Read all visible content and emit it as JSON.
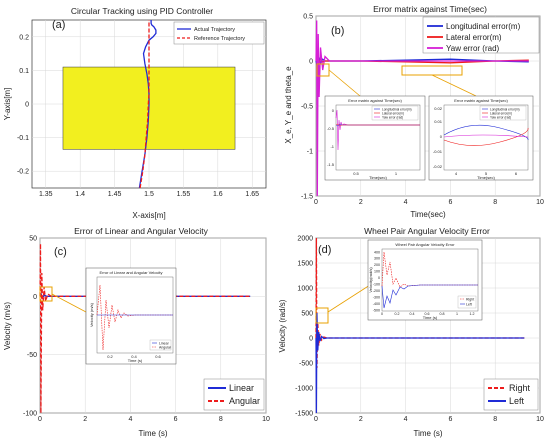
{
  "figure_panels": [
    "(a)",
    "(b)",
    "(c)",
    "(d)"
  ],
  "colors": {
    "blue": "#1f2bd6",
    "red": "#ee1c1c",
    "magenta": "#d61fd6",
    "yellow_rect": "#f2ef1f",
    "callout": "#e8a000"
  },
  "chart_data": [
    {
      "id": "a",
      "type": "line",
      "panel_label": "(a)",
      "title": "Circular Tracking using PID Controller",
      "xlabel": "X-axis[m]",
      "ylabel": "Y-axis[m]",
      "xlim": [
        1.33,
        1.67
      ],
      "ylim": [
        -0.25,
        0.25
      ],
      "xticks": [
        "1.35",
        "1.4",
        "1.45",
        "1.5",
        "1.55",
        "1.6",
        "1.65"
      ],
      "yticks": [
        "-0.2",
        "-0.1",
        "0",
        "0.1",
        "0.2"
      ],
      "grid": true,
      "legend_position": "top-right",
      "series": [
        {
          "name": "Actual Trajectory",
          "color": "#1f2bd6",
          "style": "solid",
          "x": [
            1.486,
            1.49,
            1.494,
            1.497,
            1.499,
            1.5,
            1.5,
            1.499,
            1.497,
            1.494,
            1.492,
            1.495,
            1.5,
            1.506,
            1.51,
            1.51,
            1.507,
            1.504,
            1.503,
            1.503
          ],
          "y": [
            -0.25,
            -0.2,
            -0.15,
            -0.1,
            -0.05,
            0.0,
            0.03,
            0.06,
            0.09,
            0.12,
            0.15,
            0.17,
            0.19,
            0.2,
            0.21,
            0.22,
            0.23,
            0.235,
            0.24,
            0.25
          ]
        },
        {
          "name": "Reference Trajectory",
          "color": "#ee1c1c",
          "style": "dashed",
          "x": [
            1.487,
            1.491,
            1.494,
            1.496,
            1.498,
            1.499,
            1.5,
            1.5,
            1.5,
            1.5,
            1.5,
            1.5,
            1.5,
            1.5,
            1.5,
            1.5,
            1.5,
            1.5,
            1.5,
            1.5
          ],
          "y": [
            -0.25,
            -0.2,
            -0.15,
            -0.1,
            -0.05,
            0.0,
            0.03,
            0.06,
            0.09,
            0.12,
            0.15,
            0.17,
            0.19,
            0.2,
            0.21,
            0.22,
            0.23,
            0.235,
            0.24,
            0.25
          ]
        }
      ],
      "highlight_region": {
        "x": [
          1.375,
          1.625
        ],
        "y": [
          -0.135,
          0.11
        ],
        "color": "#f2ef1f"
      }
    },
    {
      "id": "b",
      "type": "line",
      "panel_label": "(b)",
      "title": "Error matrix against Time(sec)",
      "xlabel": "Time(sec)",
      "ylabel": "X_e, Y_e and theta_e",
      "xlim": [
        0,
        10
      ],
      "ylim": [
        -1.5,
        0.5
      ],
      "xticks": [
        "0",
        "2",
        "4",
        "6",
        "8",
        "10"
      ],
      "yticks": [
        "-1.5",
        "-1",
        "-0.5",
        "0",
        "0.5"
      ],
      "grid": true,
      "legend_position": "top-right",
      "series": [
        {
          "name": "Longitudinal error(m)",
          "color": "#1f2bd6",
          "x": [
            0,
            0.05,
            0.1,
            0.2,
            0.3,
            0.4,
            0.6,
            1,
            2,
            4,
            6,
            8,
            9.5
          ],
          "y": [
            0,
            -0.05,
            0.05,
            -0.02,
            0.02,
            0.0,
            0.0,
            0.0,
            0.0,
            0.01,
            0.02,
            0.0,
            -0.01
          ]
        },
        {
          "name": "Lateral error(m)",
          "color": "#ee1c1c",
          "x": [
            0,
            0.05,
            0.1,
            0.2,
            0.3,
            0.4,
            0.6,
            1,
            2,
            4,
            6,
            8,
            9.5
          ],
          "y": [
            0,
            0.03,
            -0.03,
            0.02,
            -0.01,
            0.0,
            0.0,
            0.0,
            0.0,
            -0.01,
            -0.02,
            0.0,
            0.01
          ]
        },
        {
          "name": "Yaw error (rad)",
          "color": "#d61fd6",
          "x": [
            0,
            0.03,
            0.06,
            0.1,
            0.14,
            0.2,
            0.3,
            0.4,
            0.6,
            1,
            2,
            4,
            6,
            8,
            9.5
          ],
          "y": [
            0.0,
            0.45,
            -1.5,
            0.3,
            -0.4,
            0.15,
            -0.1,
            0.05,
            0.0,
            0.0,
            0.0,
            0.0,
            0.0,
            0.0,
            0.0
          ]
        }
      ],
      "insets": [
        {
          "title": "Error matrix against Time(sec)",
          "xlabel": "Time(sec)",
          "legend": [
            "Longitudinal error(m)",
            "Lateral error(m)",
            "Yaw error (rad)"
          ],
          "yticks": [
            "0",
            "-0.5",
            "-1",
            "-1.5"
          ],
          "xticks": [
            "0.5",
            "1"
          ]
        },
        {
          "title": "Error matrix against Time(sec)",
          "xlabel": "Time(sec)",
          "legend": [
            "Longitudinal error(m)",
            "Lateral error(m)",
            "Yaw error (rad)"
          ],
          "yticks": [
            "0.02",
            "0.01",
            "0",
            "-0.01",
            "-0.02"
          ],
          "xticks": [
            "4",
            "5",
            "6"
          ]
        }
      ]
    },
    {
      "id": "c",
      "type": "line",
      "panel_label": "(c)",
      "title": "Error of Linear and Angular Velocity",
      "xlabel": "Time (s)",
      "ylabel": "Velocity (m/s)",
      "xlim": [
        0,
        10
      ],
      "ylim": [
        -100,
        50
      ],
      "xticks": [
        "0",
        "2",
        "4",
        "6",
        "8",
        "10"
      ],
      "yticks": [
        "-100",
        "-50",
        "0",
        "50"
      ],
      "grid": true,
      "legend_position": "bottom-right",
      "series": [
        {
          "name": "Linear",
          "color": "#1f2bd6",
          "style": "solid",
          "x": [
            0,
            0.05,
            0.1,
            0.2,
            0.3,
            0.5,
            1,
            2,
            4,
            6,
            8,
            9.3
          ],
          "y": [
            0,
            2,
            -1,
            1,
            0,
            0,
            0,
            0,
            0,
            0,
            0,
            0
          ]
        },
        {
          "name": "Angular",
          "color": "#ee1c1c",
          "style": "dashed",
          "x": [
            0,
            0.02,
            0.04,
            0.08,
            0.12,
            0.18,
            0.25,
            0.35,
            0.5,
            1,
            2,
            4,
            6,
            8,
            9.3
          ],
          "y": [
            0,
            45,
            -100,
            20,
            -12,
            8,
            -4,
            2,
            0,
            0,
            0,
            0,
            0,
            0,
            0
          ]
        }
      ],
      "inset": {
        "title": "Error of Linear and Angular Velocity",
        "xlabel": "Time (s)",
        "ylabel": "Velocity (m/s)",
        "legend": [
          "Linear",
          "Angular"
        ],
        "xticks": [
          "0.2",
          "0.4",
          "0.6"
        ]
      }
    },
    {
      "id": "d",
      "type": "line",
      "panel_label": "(d)",
      "title": "Wheel Pair Angular Velocity Error",
      "xlabel": "Time (s)",
      "ylabel": "Velocity (rad/s)",
      "xlim": [
        0,
        10
      ],
      "ylim": [
        -1500,
        2000
      ],
      "xticks": [
        "0",
        "2",
        "4",
        "6",
        "8",
        "10"
      ],
      "yticks": [
        "-1500",
        "-1000",
        "-500",
        "0",
        "500",
        "1000",
        "1500",
        "2000"
      ],
      "grid": true,
      "legend_position": "bottom-right",
      "series": [
        {
          "name": "Right",
          "color": "#ee1c1c",
          "style": "dashed",
          "x": [
            0,
            0.02,
            0.04,
            0.08,
            0.12,
            0.18,
            0.25,
            0.35,
            0.5,
            1,
            2,
            4,
            6,
            8,
            9.3
          ],
          "y": [
            0,
            2000,
            -600,
            300,
            -150,
            80,
            -40,
            20,
            0,
            0,
            0,
            0,
            0,
            0,
            0
          ]
        },
        {
          "name": "Left",
          "color": "#1f2bd6",
          "style": "solid",
          "x": [
            0,
            0.02,
            0.04,
            0.08,
            0.12,
            0.18,
            0.25,
            0.35,
            0.5,
            1,
            2,
            4,
            6,
            8,
            9.3
          ],
          "y": [
            0,
            -1500,
            500,
            -250,
            120,
            -60,
            30,
            -10,
            0,
            0,
            0,
            0,
            0,
            0,
            0
          ]
        }
      ],
      "inset": {
        "title": "Wheel Pair Angular Velocity Error",
        "xlabel": "Time (s)",
        "ylabel": "Velocity(rad/s)",
        "legend": [
          "Right",
          "Left"
        ],
        "yticks": [
          "400",
          "300",
          "200",
          "100",
          "0",
          "-100",
          "-200",
          "-300",
          "-400",
          "-500"
        ],
        "xticks": [
          "0",
          "0.2",
          "0.4",
          "0.6",
          "0.8",
          "1",
          "1.2"
        ]
      }
    }
  ]
}
